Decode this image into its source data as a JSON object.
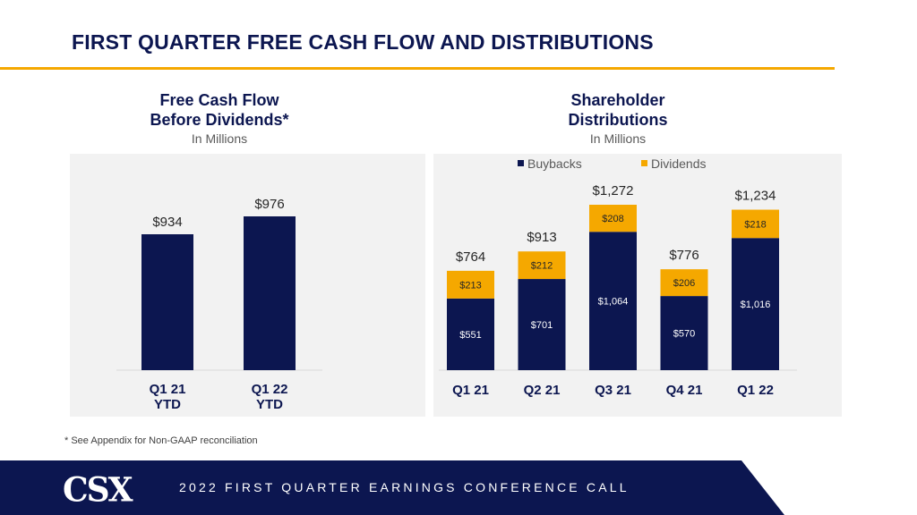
{
  "title": "FIRST QUARTER FREE CASH FLOW AND DISTRIBUTIONS",
  "footnote": "* See Appendix for Non-GAAP reconciliation",
  "footer": {
    "logo": "CSX",
    "text": "2022 FIRST QUARTER EARNINGS CONFERENCE CALL"
  },
  "colors": {
    "navy": "#0c1650",
    "orange": "#f5a800"
  },
  "chart_data": [
    {
      "type": "bar",
      "title_line1": "Free Cash Flow",
      "title_line2": "Before Dividends*",
      "subtitle": "In Millions",
      "categories": [
        [
          "Q1 21",
          "YTD"
        ],
        [
          "Q1 22",
          "YTD"
        ]
      ],
      "values": [
        934,
        976
      ],
      "labels": [
        "$934",
        "$976"
      ],
      "ylim": [
        615,
        1000
      ]
    },
    {
      "type": "bar",
      "stacked": true,
      "title_line1": "Shareholder",
      "title_line2": "Distributions",
      "subtitle": "In Millions",
      "legend": [
        "Buybacks",
        "Dividends"
      ],
      "legend_position": "top",
      "categories": [
        "Q1 21",
        "Q2 21",
        "Q3 21",
        "Q4 21",
        "Q1 22"
      ],
      "series": [
        {
          "name": "Buybacks",
          "values": [
            551,
            701,
            1064,
            570,
            1016
          ],
          "labels": [
            "$551",
            "$701",
            "$1,064",
            "$570",
            "$1,016"
          ]
        },
        {
          "name": "Dividends",
          "values": [
            213,
            212,
            208,
            206,
            218
          ],
          "labels": [
            "$213",
            "$212",
            "$208",
            "$206",
            "$218"
          ]
        }
      ],
      "totals": [
        "$764",
        "$913",
        "$1,272",
        "$776",
        "$1,234"
      ],
      "ylim": [
        0,
        1300
      ]
    }
  ]
}
